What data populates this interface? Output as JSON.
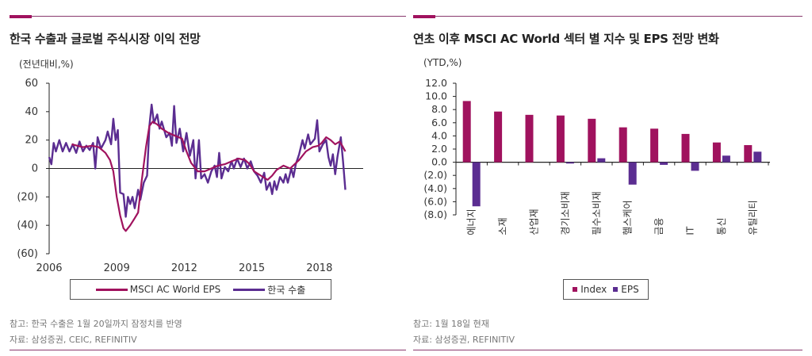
{
  "colors": {
    "msci": "#a0125e",
    "korea": "#5b2d91",
    "index": "#a0125e",
    "eps": "#5b2d91",
    "accent": "#a0125e",
    "rule": "#8a3a6e"
  },
  "left": {
    "title": "한국 수출과 글로벌 주식시장 이익 전망",
    "unit": "(전년대비,%)",
    "note": "참고: 한국 수출은 1월 20일까지 잠정치를 반영",
    "source": "자료: 삼성증권, CEIC, REFINITIV",
    "legend": [
      "MSCI AC World EPS",
      "한국 수출"
    ]
  },
  "right": {
    "title": "연초 이후 MSCI AC World 섹터 별 지수 및 EPS 전망 변화",
    "unit": "(YTD,%)",
    "note": "참고: 1월 18일 현재",
    "source": "자료: 삼성증권, REFINITIV",
    "legend": [
      "Index",
      "EPS"
    ]
  },
  "chart_data": [
    {
      "type": "line",
      "title": "한국 수출과 글로벌 주식시장 이익 전망",
      "ylabel": "(전년대비,%)",
      "ylim": [
        -60,
        60
      ],
      "yticks": [
        60,
        40,
        20,
        0,
        -20,
        -40,
        -60
      ],
      "ytick_labels": [
        "60",
        "40",
        "20",
        "0",
        "(20)",
        "(40)",
        "(60)"
      ],
      "xlim": [
        2006,
        2019.4
      ],
      "xticks": [
        2006,
        2009,
        2012,
        2015,
        2018
      ],
      "xtick_labels": [
        "2006",
        "2009",
        "2012",
        "2015",
        "2018"
      ],
      "legend_position": "bottom",
      "series": [
        {
          "name": "MSCI AC World EPS",
          "points": [
            [
              2007.0,
              17
            ],
            [
              2007.5,
              15
            ],
            [
              2007.9,
              16
            ],
            [
              2008.2,
              15
            ],
            [
              2008.5,
              11
            ],
            [
              2008.7,
              6
            ],
            [
              2008.85,
              -2
            ],
            [
              2009.0,
              -20
            ],
            [
              2009.15,
              -33
            ],
            [
              2009.3,
              -42
            ],
            [
              2009.4,
              -44
            ],
            [
              2009.6,
              -40
            ],
            [
              2009.8,
              -35
            ],
            [
              2009.95,
              -31
            ],
            [
              2010.1,
              -10
            ],
            [
              2010.3,
              15
            ],
            [
              2010.45,
              30
            ],
            [
              2010.6,
              33
            ],
            [
              2010.8,
              31
            ],
            [
              2011.0,
              28
            ],
            [
              2011.3,
              25
            ],
            [
              2011.6,
              23
            ],
            [
              2011.9,
              21
            ],
            [
              2012.1,
              12
            ],
            [
              2012.3,
              4
            ],
            [
              2012.6,
              -2
            ],
            [
              2012.9,
              -2
            ],
            [
              2013.2,
              0
            ],
            [
              2013.5,
              2
            ],
            [
              2013.8,
              3
            ],
            [
              2014.1,
              5
            ],
            [
              2014.4,
              7
            ],
            [
              2014.7,
              6
            ],
            [
              2014.9,
              3
            ],
            [
              2015.1,
              -2
            ],
            [
              2015.4,
              -5
            ],
            [
              2015.7,
              -8
            ],
            [
              2015.9,
              -5
            ],
            [
              2016.1,
              -1
            ],
            [
              2016.4,
              2
            ],
            [
              2016.7,
              0
            ],
            [
              2016.9,
              3
            ],
            [
              2017.1,
              6
            ],
            [
              2017.4,
              12
            ],
            [
              2017.7,
              15
            ],
            [
              2017.95,
              16
            ],
            [
              2018.1,
              18
            ],
            [
              2018.3,
              22
            ],
            [
              2018.5,
              20
            ],
            [
              2018.7,
              17
            ],
            [
              2018.9,
              19
            ],
            [
              2019.05,
              15
            ],
            [
              2019.15,
              12
            ]
          ]
        },
        {
          "name": "한국 수출",
          "points": [
            [
              2006.0,
              8
            ],
            [
              2006.1,
              3
            ],
            [
              2006.2,
              18
            ],
            [
              2006.3,
              12
            ],
            [
              2006.45,
              20
            ],
            [
              2006.6,
              12
            ],
            [
              2006.75,
              18
            ],
            [
              2006.9,
              12
            ],
            [
              2007.05,
              17
            ],
            [
              2007.2,
              11
            ],
            [
              2007.35,
              19
            ],
            [
              2007.5,
              12
            ],
            [
              2007.65,
              16
            ],
            [
              2007.8,
              13
            ],
            [
              2007.95,
              18
            ],
            [
              2008.05,
              0
            ],
            [
              2008.15,
              22
            ],
            [
              2008.3,
              14
            ],
            [
              2008.5,
              20
            ],
            [
              2008.6,
              26
            ],
            [
              2008.75,
              17
            ],
            [
              2008.85,
              35
            ],
            [
              2008.95,
              20
            ],
            [
              2009.05,
              27
            ],
            [
              2009.15,
              -17
            ],
            [
              2009.3,
              -18
            ],
            [
              2009.4,
              -34
            ],
            [
              2009.5,
              -20
            ],
            [
              2009.6,
              -25
            ],
            [
              2009.7,
              -20
            ],
            [
              2009.8,
              -28
            ],
            [
              2009.95,
              -15
            ],
            [
              2010.05,
              -22
            ],
            [
              2010.2,
              -10
            ],
            [
              2010.35,
              -5
            ],
            [
              2010.45,
              30
            ],
            [
              2010.55,
              45
            ],
            [
              2010.65,
              32
            ],
            [
              2010.8,
              38
            ],
            [
              2010.9,
              28
            ],
            [
              2011.0,
              33
            ],
            [
              2011.2,
              22
            ],
            [
              2011.35,
              25
            ],
            [
              2011.45,
              16
            ],
            [
              2011.55,
              44
            ],
            [
              2011.65,
              18
            ],
            [
              2011.8,
              28
            ],
            [
              2011.95,
              12
            ],
            [
              2012.1,
              25
            ],
            [
              2012.25,
              9
            ],
            [
              2012.4,
              20
            ],
            [
              2012.5,
              -7
            ],
            [
              2012.65,
              20
            ],
            [
              2012.75,
              -7
            ],
            [
              2012.9,
              -4
            ],
            [
              2013.05,
              -10
            ],
            [
              2013.2,
              -2
            ],
            [
              2013.35,
              2
            ],
            [
              2013.45,
              -6
            ],
            [
              2013.55,
              11
            ],
            [
              2013.65,
              -7
            ],
            [
              2013.8,
              1
            ],
            [
              2013.95,
              -2
            ],
            [
              2014.1,
              5
            ],
            [
              2014.2,
              0
            ],
            [
              2014.35,
              7
            ],
            [
              2014.5,
              1
            ],
            [
              2014.65,
              7
            ],
            [
              2014.8,
              0
            ],
            [
              2014.95,
              5
            ],
            [
              2015.1,
              -2
            ],
            [
              2015.25,
              -5
            ],
            [
              2015.4,
              -10
            ],
            [
              2015.55,
              -3
            ],
            [
              2015.65,
              -15
            ],
            [
              2015.8,
              -10
            ],
            [
              2015.9,
              -18
            ],
            [
              2016.0,
              -9
            ],
            [
              2016.1,
              -15
            ],
            [
              2016.25,
              -6
            ],
            [
              2016.4,
              -10
            ],
            [
              2016.5,
              -4
            ],
            [
              2016.6,
              -10
            ],
            [
              2016.75,
              0
            ],
            [
              2016.85,
              -6
            ],
            [
              2016.95,
              3
            ],
            [
              2017.1,
              10
            ],
            [
              2017.25,
              20
            ],
            [
              2017.35,
              14
            ],
            [
              2017.5,
              24
            ],
            [
              2017.6,
              17
            ],
            [
              2017.8,
              21
            ],
            [
              2017.9,
              34
            ],
            [
              2018.0,
              12
            ],
            [
              2018.15,
              17
            ],
            [
              2018.3,
              20
            ],
            [
              2018.4,
              8
            ],
            [
              2018.5,
              2
            ],
            [
              2018.6,
              10
            ],
            [
              2018.7,
              -4
            ],
            [
              2018.8,
              8
            ],
            [
              2018.95,
              22
            ],
            [
              2019.05,
              5
            ],
            [
              2019.15,
              -15
            ]
          ]
        }
      ]
    },
    {
      "type": "bar",
      "title": "연초 이후 MSCI AC World 섹터 별 지수 및 EPS 전망 변화",
      "ylabel": "(YTD,%)",
      "ylim": [
        -8,
        12
      ],
      "yticks": [
        12,
        10,
        8,
        6,
        4,
        2,
        0,
        -2,
        -4,
        -6,
        -8
      ],
      "ytick_labels": [
        "12.0",
        "10.0",
        "8.0",
        "6.0",
        "4.0",
        "2.0",
        "0.0",
        "(2.0)",
        "(4.0)",
        "(6.0)",
        "(8.0)"
      ],
      "categories": [
        "에너지",
        "소재",
        "산업재",
        "경기소비재",
        "필수소비재",
        "헬스케어",
        "금융",
        "IT",
        "통신",
        "유틸리티"
      ],
      "legend_position": "bottom",
      "series": [
        {
          "name": "Index",
          "values": [
            9.3,
            7.7,
            7.2,
            7.1,
            6.6,
            5.3,
            5.1,
            4.3,
            3.0,
            2.6
          ]
        },
        {
          "name": "EPS",
          "values": [
            -6.7,
            0.0,
            0.0,
            -0.2,
            0.6,
            -3.4,
            -0.4,
            -1.3,
            1.0,
            1.6
          ]
        }
      ]
    }
  ]
}
